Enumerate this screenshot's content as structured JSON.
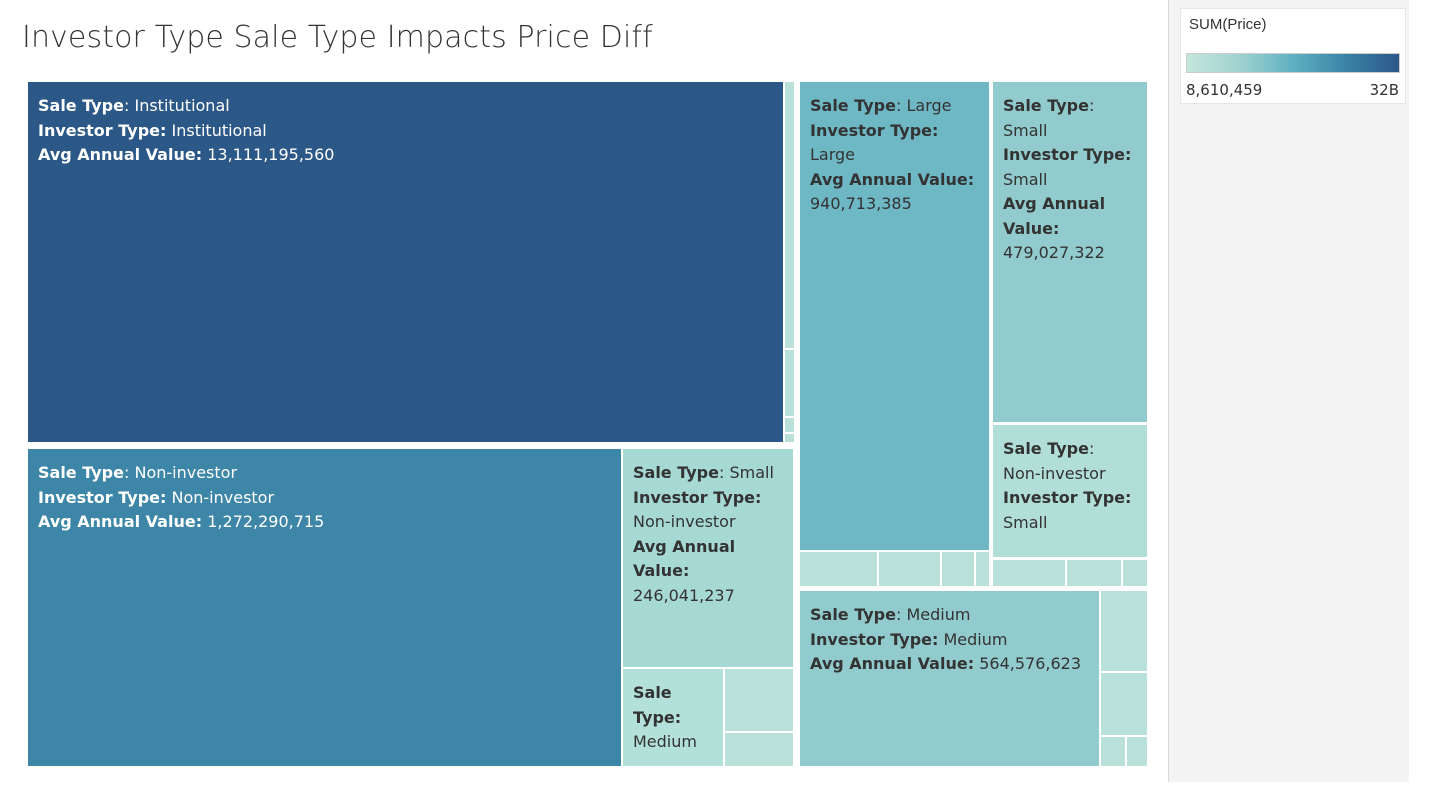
{
  "title": "Investor Type Sale Type Impacts Price Diff",
  "legend": {
    "title": "SUM(Price)",
    "min_label": "8,610,459",
    "max_label": "32B",
    "color_low": "#c5e6dd",
    "color_high": "#2c5788"
  },
  "labels": {
    "sale_type": "Sale Type",
    "investor_type": "Investor Type:",
    "avg_annual_value": "Avg Annual Value:",
    "avg_annual": "Avg Annual",
    "value": "Value:",
    "sale": "Sale",
    "type": "Type:"
  },
  "chart_data": {
    "type": "treemap",
    "title": "Investor Type Sale Type Impacts Price Diff",
    "color_measure": "SUM(Price)",
    "color_range_labels": [
      "8,610,459",
      "32B"
    ],
    "tiles": [
      {
        "sale_type": "Institutional",
        "investor_type": "Institutional",
        "avg_annual_value": "13,111,195,560",
        "color": "#2c5888"
      },
      {
        "sale_type": "Non-investor",
        "investor_type": "Non-investor",
        "avg_annual_value": "1,272,290,715",
        "color": "#3d86a7"
      },
      {
        "sale_type": "Large",
        "investor_type": "Large",
        "avg_annual_value": "940,713,385",
        "color": "#6eb7c5"
      },
      {
        "sale_type": "Medium",
        "investor_type": "Medium",
        "avg_annual_value": "564,576,623",
        "color": "#92cbce"
      },
      {
        "sale_type": "Small",
        "investor_type": "Small",
        "avg_annual_value": "479,027,322",
        "color": "#92cbce"
      },
      {
        "sale_type": "Small",
        "investor_type": "Non-investor",
        "avg_annual_value": "246,041,237",
        "color": "#a6d8d4"
      },
      {
        "sale_type": "Non-investor",
        "investor_type": "Small",
        "avg_annual_value": "",
        "color": "#b1dfd7"
      },
      {
        "sale_type": "Medium",
        "investor_type": "",
        "avg_annual_value": "",
        "color": "#b3e0d8"
      }
    ]
  }
}
